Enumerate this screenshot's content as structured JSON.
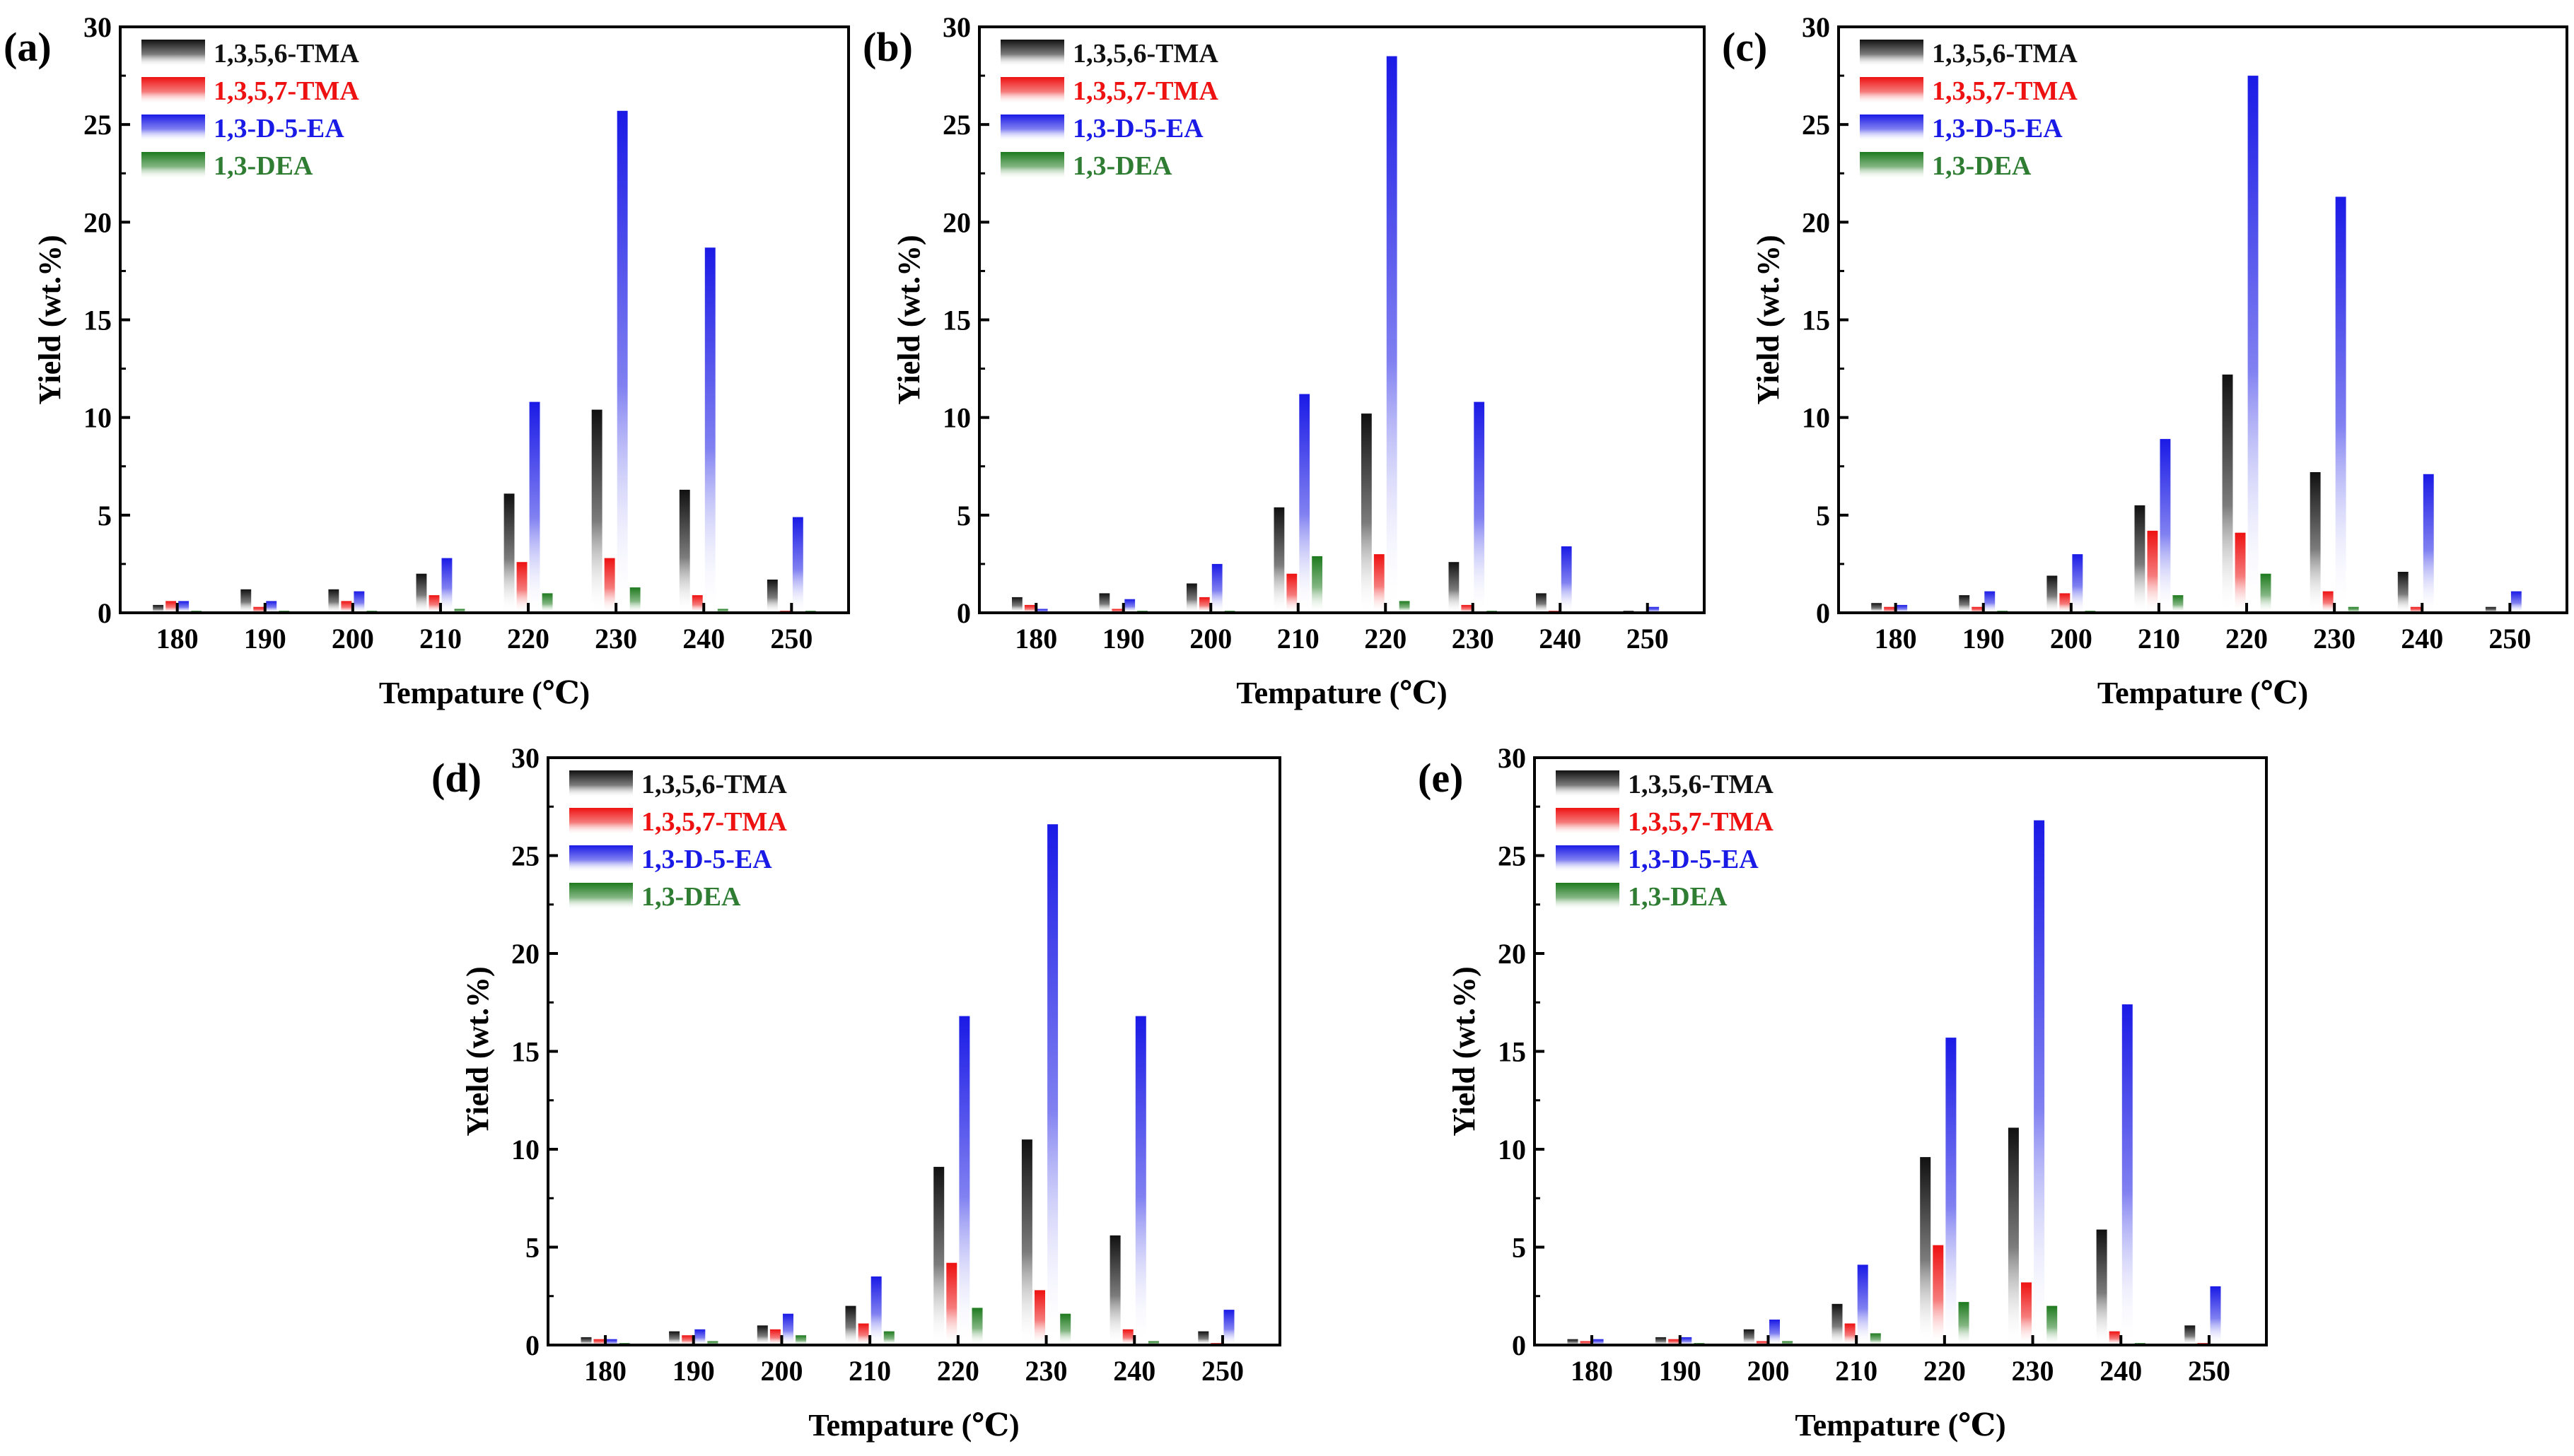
{
  "figure": {
    "series_colors": {
      "1,3,5,6-TMA": "#111111",
      "1,3,5,7-TMA": "#ee1111",
      "1,3-D-5-EA": "#1a1ae6",
      "1,3-DEA": "#1e7a1e"
    },
    "legend_text_colors": {
      "1,3,5,6-TMA": "#111111",
      "1,3,5,7-TMA": "#ee1111",
      "1,3-D-5-EA": "#1a1ae6",
      "1,3-DEA": "#2e7d32"
    }
  },
  "chart_data": [
    {
      "type": "bar",
      "panel_label": "(a)",
      "xlabel": "Tempature (℃)",
      "ylabel": "Yield (wt.%)",
      "ylim": [
        0,
        30
      ],
      "yticks": [
        "0",
        "5",
        "10",
        "15",
        "20",
        "25",
        "30"
      ],
      "categories": [
        "180",
        "190",
        "200",
        "210",
        "220",
        "230",
        "240",
        "250"
      ],
      "legend_placement": "top-left",
      "series": [
        {
          "name": "1,3,5,6-TMA",
          "values": [
            0.4,
            1.2,
            1.2,
            2.0,
            6.1,
            10.4,
            6.3,
            1.7
          ]
        },
        {
          "name": "1,3,5,7-TMA",
          "values": [
            0.6,
            0.3,
            0.6,
            0.9,
            2.6,
            2.8,
            0.9,
            0.1
          ]
        },
        {
          "name": "1,3-D-5-EA",
          "values": [
            0.6,
            0.6,
            1.1,
            2.8,
            10.8,
            25.7,
            18.7,
            4.9
          ]
        },
        {
          "name": "1,3-DEA",
          "values": [
            0.1,
            0.1,
            0.1,
            0.2,
            1.0,
            1.3,
            0.2,
            0.1
          ]
        }
      ]
    },
    {
      "type": "bar",
      "panel_label": "(b)",
      "xlabel": "Tempature (℃)",
      "ylabel": "Yield (wt.%)",
      "ylim": [
        0,
        30
      ],
      "yticks": [
        "0",
        "5",
        "10",
        "15",
        "20",
        "25",
        "30"
      ],
      "categories": [
        "180",
        "190",
        "200",
        "210",
        "220",
        "230",
        "240",
        "250"
      ],
      "legend_placement": "top-left",
      "series": [
        {
          "name": "1,3,5,6-TMA",
          "values": [
            0.8,
            1.0,
            1.5,
            5.4,
            10.2,
            2.6,
            1.0,
            0.1
          ]
        },
        {
          "name": "1,3,5,7-TMA",
          "values": [
            0.4,
            0.2,
            0.8,
            2.0,
            3.0,
            0.4,
            0.1,
            0.0
          ]
        },
        {
          "name": "1,3-D-5-EA",
          "values": [
            0.2,
            0.7,
            2.5,
            11.2,
            28.5,
            10.8,
            3.4,
            0.3
          ]
        },
        {
          "name": "1,3-DEA",
          "values": [
            0.0,
            0.1,
            0.1,
            2.9,
            0.6,
            0.1,
            0.0,
            0.0
          ]
        }
      ]
    },
    {
      "type": "bar",
      "panel_label": "(c)",
      "xlabel": "Tempature (℃)",
      "ylabel": "Yield (wt.%)",
      "ylim": [
        0,
        30
      ],
      "yticks": [
        "0",
        "5",
        "10",
        "15",
        "20",
        "25",
        "30"
      ],
      "categories": [
        "180",
        "190",
        "200",
        "210",
        "220",
        "230",
        "240",
        "250"
      ],
      "legend_placement": "top-left",
      "series": [
        {
          "name": "1,3,5,6-TMA",
          "values": [
            0.5,
            0.9,
            1.9,
            5.5,
            12.2,
            7.2,
            2.1,
            0.3
          ]
        },
        {
          "name": "1,3,5,7-TMA",
          "values": [
            0.3,
            0.3,
            1.0,
            4.2,
            4.1,
            1.1,
            0.3,
            0.0
          ]
        },
        {
          "name": "1,3-D-5-EA",
          "values": [
            0.4,
            1.1,
            3.0,
            8.9,
            27.5,
            21.3,
            7.1,
            1.1
          ]
        },
        {
          "name": "1,3-DEA",
          "values": [
            0.0,
            0.1,
            0.1,
            0.9,
            2.0,
            0.3,
            0.0,
            0.0
          ]
        }
      ]
    },
    {
      "type": "bar",
      "panel_label": "(d)",
      "xlabel": "Tempature (℃)",
      "ylabel": "Yield (wt.%)",
      "ylim": [
        0,
        30
      ],
      "yticks": [
        "0",
        "5",
        "10",
        "15",
        "20",
        "25",
        "30"
      ],
      "categories": [
        "180",
        "190",
        "200",
        "210",
        "220",
        "230",
        "240",
        "250"
      ],
      "legend_placement": "top-left",
      "series": [
        {
          "name": "1,3,5,6-TMA",
          "values": [
            0.4,
            0.7,
            1.0,
            2.0,
            9.1,
            10.5,
            5.6,
            0.7
          ]
        },
        {
          "name": "1,3,5,7-TMA",
          "values": [
            0.3,
            0.5,
            0.8,
            1.1,
            4.2,
            2.8,
            0.8,
            0.1
          ]
        },
        {
          "name": "1,3-D-5-EA",
          "values": [
            0.3,
            0.8,
            1.6,
            3.5,
            16.8,
            26.6,
            16.8,
            1.8
          ]
        },
        {
          "name": "1,3-DEA",
          "values": [
            0.1,
            0.2,
            0.5,
            0.7,
            1.9,
            1.6,
            0.2,
            0.0
          ]
        }
      ]
    },
    {
      "type": "bar",
      "panel_label": "(e)",
      "xlabel": "Tempature (℃)",
      "ylabel": "Yield (wt.%)",
      "ylim": [
        0,
        30
      ],
      "yticks": [
        "0",
        "5",
        "10",
        "15",
        "20",
        "25",
        "30"
      ],
      "categories": [
        "180",
        "190",
        "200",
        "210",
        "220",
        "230",
        "240",
        "250"
      ],
      "legend_placement": "top-left",
      "series": [
        {
          "name": "1,3,5,6-TMA",
          "values": [
            0.3,
            0.4,
            0.8,
            2.1,
            9.6,
            11.1,
            5.9,
            1.0
          ]
        },
        {
          "name": "1,3,5,7-TMA",
          "values": [
            0.2,
            0.3,
            0.2,
            1.1,
            5.1,
            3.2,
            0.7,
            0.1
          ]
        },
        {
          "name": "1,3-D-5-EA",
          "values": [
            0.3,
            0.4,
            1.3,
            4.1,
            15.7,
            26.8,
            17.4,
            3.0
          ]
        },
        {
          "name": "1,3-DEA",
          "values": [
            0.0,
            0.1,
            0.2,
            0.6,
            2.2,
            2.0,
            0.1,
            0.0
          ]
        }
      ]
    }
  ]
}
